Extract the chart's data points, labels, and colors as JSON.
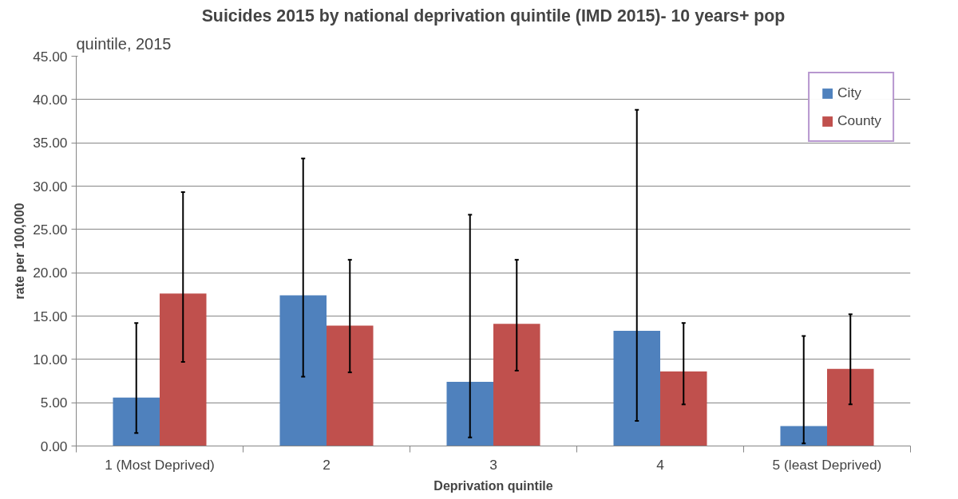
{
  "chart_data": {
    "type": "bar",
    "title": "Suicides 2015 by national deprivation quintile (IMD 2015)- 10 years+ pop",
    "xlabel": "Deprivation quintile",
    "ylabel": "rate per 100,000",
    "annotations": [
      "quintile, 2015"
    ],
    "categories": [
      "1 (Most Deprived)",
      "2",
      "3",
      "4",
      "5 (least Deprived)"
    ],
    "series": [
      {
        "name": "City",
        "color": "#4f81bd",
        "values": [
          5.6,
          17.4,
          7.4,
          13.3,
          2.3
        ],
        "errors": [
          [
            1.5,
            14.2
          ],
          [
            8.0,
            33.2
          ],
          [
            1.0,
            26.7
          ],
          [
            2.9,
            38.8
          ],
          [
            0.3,
            12.7
          ]
        ]
      },
      {
        "name": "County",
        "color": "#c0504d",
        "values": [
          17.6,
          13.9,
          14.1,
          8.6,
          8.9
        ],
        "errors": [
          [
            9.7,
            29.3
          ],
          [
            8.5,
            21.5
          ],
          [
            8.7,
            21.5
          ],
          [
            4.8,
            14.2
          ],
          [
            4.8,
            15.2
          ]
        ]
      }
    ],
    "ylim": [
      0,
      45
    ],
    "yticks": [
      {
        "value": 0,
        "label": "0.00"
      },
      {
        "value": 5,
        "label": "5.00"
      },
      {
        "value": 10,
        "label": "10.00"
      },
      {
        "value": 15,
        "label": "15.00"
      },
      {
        "value": 20,
        "label": "20.00"
      },
      {
        "value": 25,
        "label": "25.00"
      },
      {
        "value": 30,
        "label": "30.00"
      },
      {
        "value": 35,
        "label": "35.00"
      },
      {
        "value": 40,
        "label": "40.00"
      },
      {
        "value": 45,
        "label": "45.00"
      }
    ],
    "grid": "y",
    "legend": "top right"
  }
}
